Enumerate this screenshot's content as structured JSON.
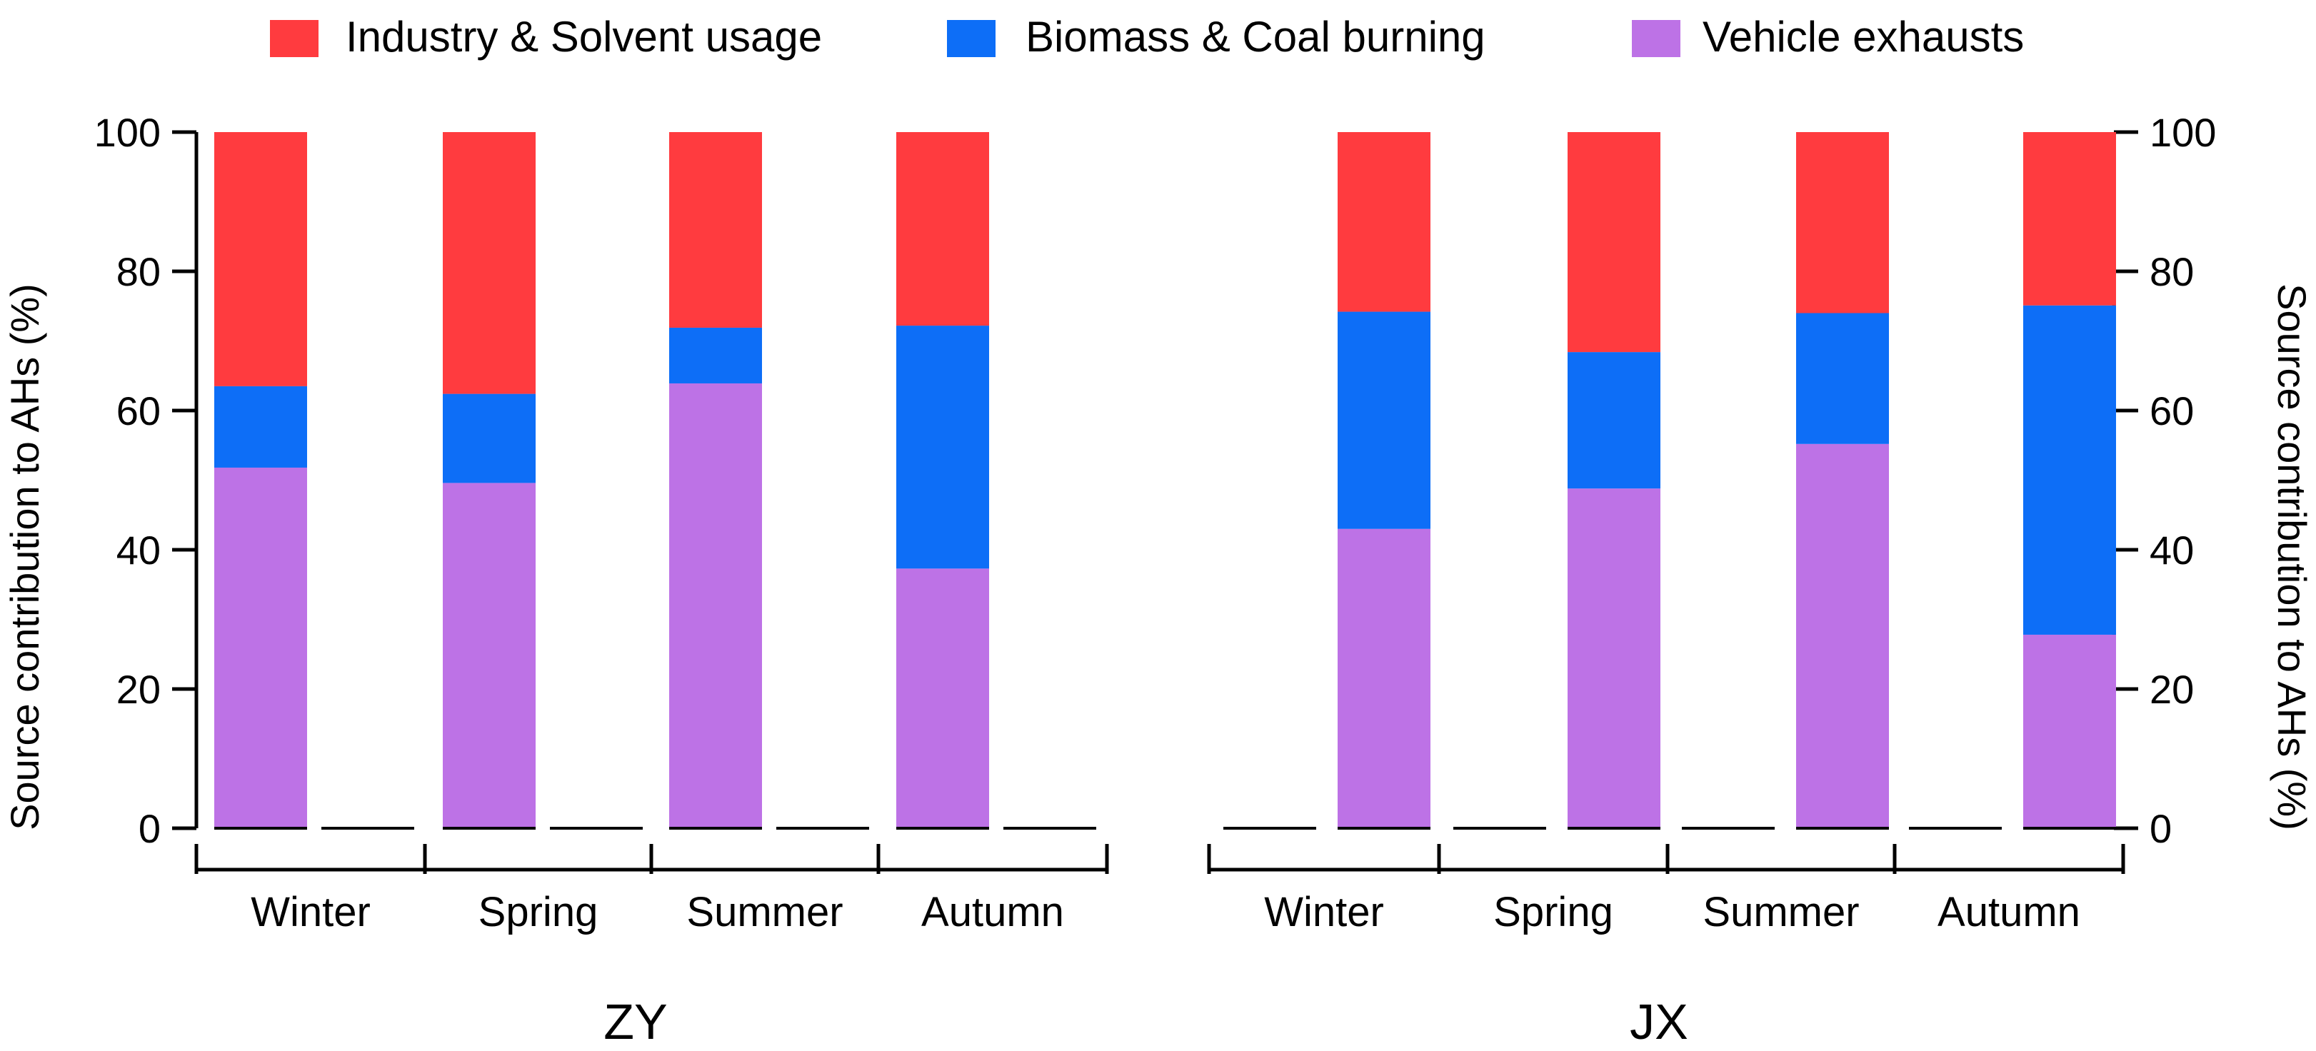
{
  "chart_data": {
    "type": "bar",
    "stacked": true,
    "legend": {
      "position": "top",
      "entries": [
        {
          "key": "industry",
          "label": "Industry & Solvent usage",
          "color": "#FF3B3F"
        },
        {
          "key": "biomass",
          "label": "Biomass & Coal burning",
          "color": "#0D6EF7"
        },
        {
          "key": "vehicle",
          "label": "Vehicle exhausts",
          "color": "#BD72E6"
        }
      ]
    },
    "ylim": [
      0,
      100
    ],
    "yticks": [
      "0",
      "20",
      "40",
      "60",
      "80",
      "100"
    ],
    "ylabel_left": "Source contribution to AHs (%)",
    "ylabel_right": "Source contribution to AHs (%)",
    "panels": [
      {
        "title": "ZY",
        "y_axis_side": "left",
        "categories": [
          "Winter",
          "Spring",
          "Summer",
          "Autumn"
        ],
        "series": [
          {
            "name": "Vehicle exhausts",
            "values": [
              51.8,
              49.6,
              63.9,
              37.3
            ]
          },
          {
            "name": "Biomass & Coal burning",
            "values": [
              11.7,
              12.8,
              8.0,
              34.9
            ]
          },
          {
            "name": "Industry & Solvent usage",
            "values": [
              36.5,
              37.6,
              28.1,
              27.8
            ]
          }
        ]
      },
      {
        "title": "JX",
        "y_axis_side": "right",
        "categories": [
          "Winter",
          "Spring",
          "Summer",
          "Autumn"
        ],
        "series": [
          {
            "name": "Vehicle exhausts",
            "values": [
              43.0,
              48.8,
              55.2,
              27.8
            ]
          },
          {
            "name": "Biomass & Coal burning",
            "values": [
              31.2,
              19.6,
              18.8,
              47.3
            ]
          },
          {
            "name": "Industry & Solvent usage",
            "values": [
              25.8,
              31.6,
              26.0,
              24.9
            ]
          }
        ]
      }
    ]
  }
}
